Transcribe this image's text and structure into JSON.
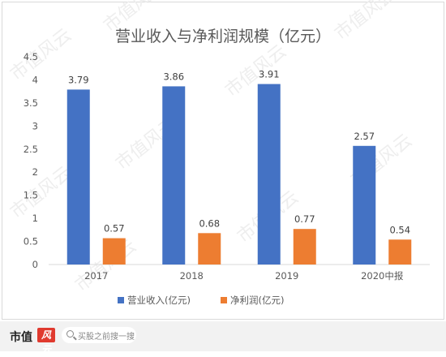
{
  "colors": {
    "revenue": "#4472c4",
    "profit": "#ed7d31",
    "axis_text": "#595959",
    "gridline": "#d9d9d9",
    "watermark": "#eeeeee"
  },
  "watermark_text": "市值风云",
  "footer": {
    "logo_text": "市值",
    "logo_badge": "风云",
    "search_placeholder": "买股之前搜一搜"
  },
  "chart_data": {
    "type": "bar",
    "title": "营业收入与净利润规模（亿元）",
    "categories": [
      "2017",
      "2018",
      "2019",
      "2020中报"
    ],
    "series": [
      {
        "name": "营业收入(亿元)",
        "values": [
          3.79,
          3.86,
          3.91,
          2.57
        ],
        "labels": [
          "3.79",
          "3.86",
          "3.91",
          "2.57"
        ]
      },
      {
        "name": "净利润(亿元)",
        "values": [
          0.57,
          0.68,
          0.77,
          0.54
        ],
        "labels": [
          "0.57",
          "0.68",
          "0.77",
          "0.54"
        ]
      }
    ],
    "ylim": [
      0,
      4.5
    ],
    "yticks": [
      "0",
      "0.5",
      "1",
      "1.5",
      "2",
      "2.5",
      "3",
      "3.5",
      "4",
      "4.5"
    ],
    "legend_position": "bottom",
    "grid": false
  }
}
